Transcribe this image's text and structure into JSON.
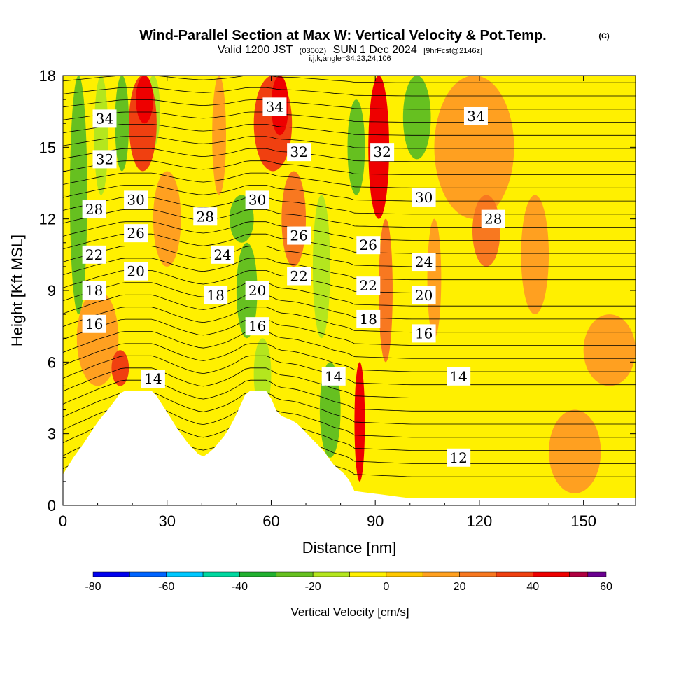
{
  "header": {
    "title": "Wind-Parallel Section at Max W: Vertical Velocity & Pot.Temp.",
    "copyright": "(C)",
    "valid_prefix": "Valid 1200 JST",
    "valid_utc": "(0300Z)",
    "valid_date": "SUN 1 Dec 2024",
    "forecast": "[9hrFcst@2146z]",
    "grid_info": "i,j,k,angle=34,23,24,106"
  },
  "chart_data": {
    "type": "heatmap",
    "title": "Wind-Parallel Section at Max W: Vertical Velocity & Pot.Temp.",
    "xlabel": "Distance [nm]",
    "ylabel": "Height [Kft MSL]",
    "xlim": [
      0,
      165
    ],
    "ylim": [
      0,
      18
    ],
    "xticks": [
      0,
      30,
      60,
      90,
      120,
      150
    ],
    "yticks": [
      0,
      3,
      6,
      9,
      12,
      15,
      18
    ],
    "colorbar": {
      "label": "Vertical Velocity [cm/s]",
      "tick_labels": [
        "-80",
        "-60",
        "-40",
        "-20",
        "0",
        "20",
        "40",
        "60"
      ],
      "tick_values": [
        -80,
        -60,
        -40,
        -20,
        0,
        20,
        40,
        60
      ],
      "bins": [
        {
          "from": -80,
          "to": -70,
          "color": "#0000ee"
        },
        {
          "from": -70,
          "to": -60,
          "color": "#0064ff"
        },
        {
          "from": -60,
          "to": -50,
          "color": "#00c8ff"
        },
        {
          "from": -50,
          "to": -40,
          "color": "#00d8a0"
        },
        {
          "from": -40,
          "to": -30,
          "color": "#22b030"
        },
        {
          "from": -30,
          "to": -20,
          "color": "#66c020"
        },
        {
          "from": -20,
          "to": -10,
          "color": "#b4e61e"
        },
        {
          "from": -10,
          "to": 0,
          "color": "#fff000"
        },
        {
          "from": 0,
          "to": 10,
          "color": "#ffc800"
        },
        {
          "from": 10,
          "to": 20,
          "color": "#ffa020"
        },
        {
          "from": 20,
          "to": 30,
          "color": "#f87820"
        },
        {
          "from": 30,
          "to": 40,
          "color": "#f04010"
        },
        {
          "from": 40,
          "to": 50,
          "color": "#ee0000"
        },
        {
          "from": 50,
          "to": 55,
          "color": "#b00040"
        },
        {
          "from": 55,
          "to": 60,
          "color": "#6a0090"
        }
      ]
    },
    "terrain_profile": [
      {
        "x": 0,
        "y": 1.3
      },
      {
        "x": 3,
        "y": 2.0
      },
      {
        "x": 6,
        "y": 2.6
      },
      {
        "x": 10,
        "y": 3.5
      },
      {
        "x": 14,
        "y": 4.2
      },
      {
        "x": 17,
        "y": 4.8
      },
      {
        "x": 26,
        "y": 4.8
      },
      {
        "x": 30,
        "y": 3.9
      },
      {
        "x": 33,
        "y": 3.2
      },
      {
        "x": 36,
        "y": 2.6
      },
      {
        "x": 40,
        "y": 2.0
      },
      {
        "x": 43,
        "y": 2.3
      },
      {
        "x": 47,
        "y": 3.0
      },
      {
        "x": 50,
        "y": 3.8
      },
      {
        "x": 53,
        "y": 4.8
      },
      {
        "x": 59,
        "y": 4.8
      },
      {
        "x": 62,
        "y": 3.8
      },
      {
        "x": 67,
        "y": 3.5
      },
      {
        "x": 71,
        "y": 2.9
      },
      {
        "x": 75,
        "y": 2.3
      },
      {
        "x": 78,
        "y": 1.7
      },
      {
        "x": 82,
        "y": 1.2
      },
      {
        "x": 84,
        "y": 0.6
      },
      {
        "x": 100,
        "y": 0.3
      },
      {
        "x": 165,
        "y": 0.3
      }
    ],
    "velocity_cells": [
      {
        "x0": 2,
        "x1": 7,
        "y0": 8,
        "y1": 18,
        "value": -25
      },
      {
        "x0": 9,
        "x1": 13,
        "y0": 13,
        "y1": 18,
        "value": -15
      },
      {
        "x0": 15,
        "x1": 19,
        "y0": 14,
        "y1": 18,
        "value": -30
      },
      {
        "x0": 24,
        "x1": 28,
        "y0": 15,
        "y1": 18,
        "value": -15
      },
      {
        "x0": 43,
        "x1": 47,
        "y0": 13,
        "y1": 18,
        "value": 15
      },
      {
        "x0": 4,
        "x1": 16,
        "y0": 5,
        "y1": 9,
        "value": 15
      },
      {
        "x0": 14,
        "x1": 19,
        "y0": 5,
        "y1": 6.5,
        "value": 35
      },
      {
        "x0": 19,
        "x1": 27,
        "y0": 14,
        "y1": 18,
        "value": 35
      },
      {
        "x0": 21,
        "x1": 26,
        "y0": 16,
        "y1": 18,
        "value": 45
      },
      {
        "x0": 26,
        "x1": 34,
        "y0": 10,
        "y1": 14,
        "value": 10
      },
      {
        "x0": 48,
        "x1": 55,
        "y0": 11,
        "y1": 13,
        "value": -30
      },
      {
        "x0": 50,
        "x1": 56,
        "y0": 7,
        "y1": 11,
        "value": -25
      },
      {
        "x0": 55,
        "x1": 60,
        "y0": 4,
        "y1": 7,
        "value": -15
      },
      {
        "x0": 55,
        "x1": 66,
        "y0": 14,
        "y1": 18,
        "value": 30
      },
      {
        "x0": 60,
        "x1": 65,
        "y0": 15.5,
        "y1": 18,
        "value": 45
      },
      {
        "x0": 63,
        "x1": 70,
        "y0": 10,
        "y1": 14,
        "value": 25
      },
      {
        "x0": 72,
        "x1": 77,
        "y0": 7,
        "y1": 13,
        "value": -15
      },
      {
        "x0": 74,
        "x1": 80,
        "y0": 2,
        "y1": 6,
        "value": -25
      },
      {
        "x0": 82,
        "x1": 87,
        "y0": 13,
        "y1": 17,
        "value": -30
      },
      {
        "x0": 84,
        "x1": 87,
        "y0": 1,
        "y1": 6,
        "value": 45
      },
      {
        "x0": 88,
        "x1": 94,
        "y0": 12,
        "y1": 18,
        "value": 40
      },
      {
        "x0": 91,
        "x1": 95,
        "y0": 6,
        "y1": 12,
        "value": 20
      },
      {
        "x0": 98,
        "x1": 106,
        "y0": 14.5,
        "y1": 18,
        "value": -30
      },
      {
        "x0": 105,
        "x1": 109,
        "y0": 7,
        "y1": 12,
        "value": 15
      },
      {
        "x0": 107,
        "x1": 130,
        "y0": 12,
        "y1": 18,
        "value": 15
      },
      {
        "x0": 118,
        "x1": 126,
        "y0": 10,
        "y1": 13,
        "value": 20
      },
      {
        "x0": 132,
        "x1": 140,
        "y0": 8,
        "y1": 13,
        "value": 10
      },
      {
        "x0": 150,
        "x1": 165,
        "y0": 5,
        "y1": 8,
        "value": 10
      },
      {
        "x0": 140,
        "x1": 155,
        "y0": 0.5,
        "y1": 4,
        "value": 10
      }
    ],
    "contour_labels": [
      {
        "text": "34",
        "x": 12,
        "y": 16.2
      },
      {
        "text": "32",
        "x": 12,
        "y": 14.5
      },
      {
        "text": "28",
        "x": 9,
        "y": 12.4
      },
      {
        "text": "22",
        "x": 9,
        "y": 10.5
      },
      {
        "text": "18",
        "x": 9,
        "y": 9.0
      },
      {
        "text": "16",
        "x": 9,
        "y": 7.6
      },
      {
        "text": "30",
        "x": 21,
        "y": 12.8
      },
      {
        "text": "26",
        "x": 21,
        "y": 11.4
      },
      {
        "text": "20",
        "x": 21,
        "y": 9.8
      },
      {
        "text": "14",
        "x": 26,
        "y": 5.3
      },
      {
        "text": "28",
        "x": 41,
        "y": 12.1
      },
      {
        "text": "24",
        "x": 46,
        "y": 10.5
      },
      {
        "text": "18",
        "x": 44,
        "y": 8.8
      },
      {
        "text": "34",
        "x": 61,
        "y": 16.7
      },
      {
        "text": "30",
        "x": 56,
        "y": 12.8
      },
      {
        "text": "20",
        "x": 56,
        "y": 9.0
      },
      {
        "text": "16",
        "x": 56,
        "y": 7.5
      },
      {
        "text": "32",
        "x": 68,
        "y": 14.8
      },
      {
        "text": "26",
        "x": 68,
        "y": 11.3
      },
      {
        "text": "22",
        "x": 68,
        "y": 9.6
      },
      {
        "text": "14",
        "x": 78,
        "y": 5.4
      },
      {
        "text": "32",
        "x": 92,
        "y": 14.8
      },
      {
        "text": "26",
        "x": 88,
        "y": 10.9
      },
      {
        "text": "22",
        "x": 88,
        "y": 9.2
      },
      {
        "text": "18",
        "x": 88,
        "y": 7.8
      },
      {
        "text": "30",
        "x": 104,
        "y": 12.9
      },
      {
        "text": "24",
        "x": 104,
        "y": 10.2
      },
      {
        "text": "20",
        "x": 104,
        "y": 8.8
      },
      {
        "text": "16",
        "x": 104,
        "y": 7.2
      },
      {
        "text": "14",
        "x": 114,
        "y": 5.4
      },
      {
        "text": "12",
        "x": 114,
        "y": 2.0
      },
      {
        "text": "34",
        "x": 119,
        "y": 16.3
      },
      {
        "text": "28",
        "x": 124,
        "y": 12.0
      }
    ]
  }
}
